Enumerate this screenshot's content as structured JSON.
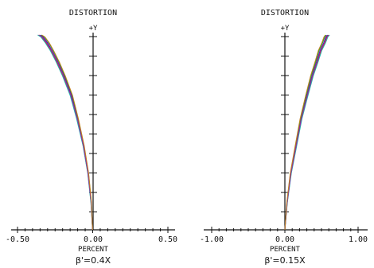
{
  "charts": [
    {
      "title": "DISTORTION",
      "y_axis_label": "+Y",
      "x_axis_label": "PERCENT",
      "caption": "β'=0.4X",
      "xlim": [
        -0.5,
        0.5
      ],
      "tick_labels": [
        "-0.50",
        "0.00",
        "0.50"
      ]
    },
    {
      "title": "DISTORTION",
      "y_axis_label": "+Y",
      "x_axis_label": "PERCENT",
      "caption": "β'=0.15X",
      "xlim": [
        -1.0,
        1.0
      ],
      "tick_labels": [
        "-1.00",
        "0.00",
        "1.00"
      ]
    }
  ],
  "chart_data": [
    {
      "type": "line",
      "title": "DISTORTION",
      "xlabel": "PERCENT",
      "ylabel": "+Y",
      "xlim": [
        -0.5,
        0.5
      ],
      "ylim": [
        0,
        1
      ],
      "series": [
        {
          "color": "#1f1fbf",
          "x": [
            -0.001,
            -0.01,
            -0.03,
            -0.06,
            -0.1,
            -0.14,
            -0.19,
            -0.23,
            -0.27,
            -0.3,
            -0.33,
            -0.35
          ],
          "y": [
            0,
            0.14,
            0.29,
            0.43,
            0.57,
            0.69,
            0.79,
            0.86,
            0.92,
            0.96,
            0.99,
            1.0
          ]
        },
        {
          "color": "#d02020",
          "x": [
            -0.001,
            -0.011,
            -0.032,
            -0.063,
            -0.105,
            -0.148,
            -0.198,
            -0.238,
            -0.278,
            -0.31,
            -0.34,
            -0.36
          ],
          "y": [
            0,
            0.14,
            0.29,
            0.43,
            0.57,
            0.69,
            0.79,
            0.86,
            0.92,
            0.96,
            0.99,
            1.0
          ]
        },
        {
          "color": "#20a020",
          "x": [
            -0.001,
            -0.009,
            -0.028,
            -0.058,
            -0.097,
            -0.136,
            -0.185,
            -0.224,
            -0.263,
            -0.292,
            -0.322,
            -0.342
          ],
          "y": [
            0,
            0.14,
            0.29,
            0.43,
            0.57,
            0.69,
            0.79,
            0.86,
            0.92,
            0.96,
            0.99,
            1.0
          ]
        },
        {
          "color": "#20b0b0",
          "x": [
            -0.001,
            -0.012,
            -0.033,
            -0.064,
            -0.107,
            -0.15,
            -0.201,
            -0.242,
            -0.282,
            -0.315,
            -0.345,
            -0.366
          ],
          "y": [
            0,
            0.14,
            0.29,
            0.43,
            0.57,
            0.69,
            0.79,
            0.86,
            0.92,
            0.96,
            0.99,
            1.0
          ]
        },
        {
          "color": "#a020a0",
          "x": [
            -0.001,
            -0.01,
            -0.031,
            -0.061,
            -0.102,
            -0.144,
            -0.193,
            -0.233,
            -0.273,
            -0.305,
            -0.335,
            -0.356
          ],
          "y": [
            0,
            0.14,
            0.29,
            0.43,
            0.57,
            0.69,
            0.79,
            0.86,
            0.92,
            0.96,
            0.99,
            1.0
          ]
        },
        {
          "color": "#c08020",
          "x": [
            -0.001,
            -0.008,
            -0.027,
            -0.056,
            -0.095,
            -0.134,
            -0.182,
            -0.221,
            -0.26,
            -0.289,
            -0.318,
            -0.338
          ],
          "y": [
            0,
            0.14,
            0.29,
            0.43,
            0.57,
            0.69,
            0.79,
            0.86,
            0.92,
            0.96,
            0.99,
            1.0
          ]
        }
      ]
    },
    {
      "type": "line",
      "title": "DISTORTION",
      "xlabel": "PERCENT",
      "ylabel": "+Y",
      "xlim": [
        -1.0,
        1.0
      ],
      "ylim": [
        0,
        1
      ],
      "series": [
        {
          "color": "#1f1fbf",
          "x": [
            0.0,
            0.03,
            0.08,
            0.15,
            0.22,
            0.3,
            0.37,
            0.43,
            0.48,
            0.53,
            0.56,
            0.58
          ],
          "y": [
            0,
            0.14,
            0.29,
            0.43,
            0.57,
            0.69,
            0.79,
            0.86,
            0.92,
            0.96,
            0.99,
            1.0
          ]
        },
        {
          "color": "#d02020",
          "x": [
            0.0,
            0.032,
            0.085,
            0.157,
            0.228,
            0.31,
            0.381,
            0.443,
            0.494,
            0.545,
            0.576,
            0.597
          ],
          "y": [
            0,
            0.14,
            0.29,
            0.43,
            0.57,
            0.69,
            0.79,
            0.86,
            0.92,
            0.96,
            0.99,
            1.0
          ]
        },
        {
          "color": "#20a020",
          "x": [
            0.0,
            0.028,
            0.076,
            0.144,
            0.213,
            0.29,
            0.358,
            0.418,
            0.466,
            0.515,
            0.544,
            0.564
          ],
          "y": [
            0,
            0.14,
            0.29,
            0.43,
            0.57,
            0.69,
            0.79,
            0.86,
            0.92,
            0.96,
            0.99,
            1.0
          ]
        },
        {
          "color": "#20b0b0",
          "x": [
            0.0,
            0.034,
            0.088,
            0.161,
            0.233,
            0.316,
            0.388,
            0.452,
            0.503,
            0.556,
            0.587,
            0.61
          ],
          "y": [
            0,
            0.14,
            0.29,
            0.43,
            0.57,
            0.69,
            0.79,
            0.86,
            0.92,
            0.96,
            0.99,
            1.0
          ]
        },
        {
          "color": "#a020a0",
          "x": [
            0.0,
            0.031,
            0.082,
            0.153,
            0.224,
            0.305,
            0.375,
            0.436,
            0.486,
            0.537,
            0.568,
            0.589
          ],
          "y": [
            0,
            0.14,
            0.29,
            0.43,
            0.57,
            0.69,
            0.79,
            0.86,
            0.92,
            0.96,
            0.99,
            1.0
          ]
        },
        {
          "color": "#c08020",
          "x": [
            0.0,
            0.026,
            0.073,
            0.14,
            0.208,
            0.284,
            0.351,
            0.41,
            0.457,
            0.505,
            0.534,
            0.553
          ],
          "y": [
            0,
            0.14,
            0.29,
            0.43,
            0.57,
            0.69,
            0.79,
            0.86,
            0.92,
            0.96,
            0.99,
            1.0
          ]
        }
      ]
    }
  ]
}
